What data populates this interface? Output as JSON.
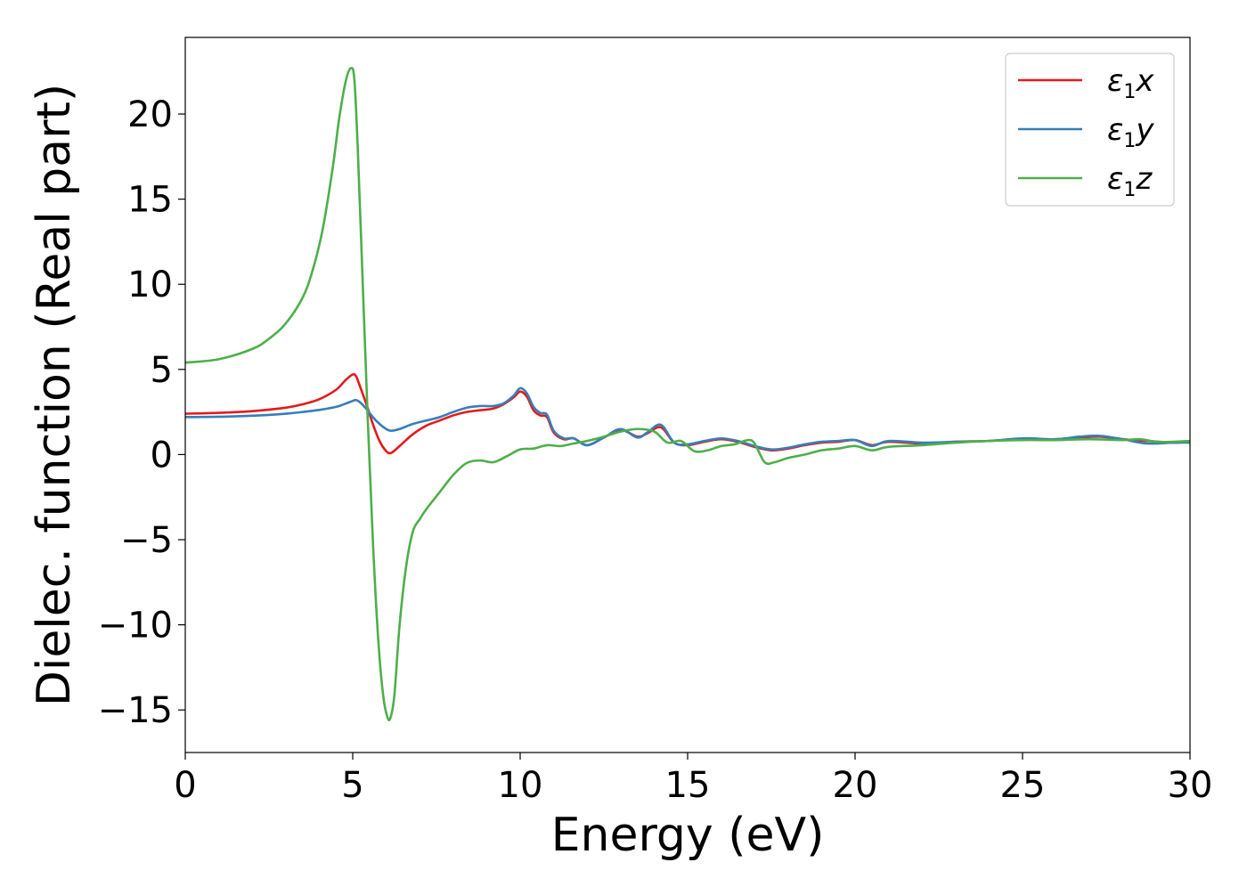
{
  "chart_data": {
    "type": "line",
    "xlabel": "Energy (eV)",
    "ylabel": "Dielec. function (Real part)",
    "xlim": [
      0,
      30
    ],
    "ylim": [
      -17.5,
      24.5
    ],
    "xticks": [
      0,
      5,
      10,
      15,
      20,
      25,
      30
    ],
    "xtick_labels": [
      "0",
      "5",
      "10",
      "15",
      "20",
      "25",
      "30"
    ],
    "yticks": [
      -15,
      -10,
      -5,
      0,
      5,
      10,
      15,
      20
    ],
    "ytick_labels": [
      "−15",
      "−10",
      "−5",
      "0",
      "5",
      "10",
      "15",
      "20"
    ],
    "grid": false,
    "legend_position": "top-right",
    "series": [
      {
        "name": "ε1x",
        "legend_main": "ε",
        "legend_sub": "1",
        "legend_suffix": "x",
        "color": "#e41a1c",
        "x": [
          0,
          1,
          2,
          3,
          3.5,
          4,
          4.5,
          4.8,
          5.0,
          5.1,
          5.2,
          5.4,
          5.6,
          5.8,
          6.0,
          6.15,
          6.4,
          6.8,
          7.2,
          7.6,
          8.0,
          8.4,
          8.8,
          9.2,
          9.5,
          9.8,
          10.0,
          10.2,
          10.4,
          10.6,
          10.8,
          11.0,
          11.3,
          11.6,
          12.0,
          12.5,
          13.0,
          13.5,
          13.8,
          14.2,
          14.6,
          15.0,
          15.5,
          16.0,
          16.5,
          17.0,
          17.5,
          18.0,
          18.5,
          19.0,
          19.5,
          20.0,
          20.5,
          21.0,
          22.0,
          23.0,
          24.0,
          25.0,
          26.0,
          26.7,
          27.3,
          28.0,
          28.7,
          29.5,
          30.0
        ],
        "y": [
          2.4,
          2.45,
          2.55,
          2.75,
          2.95,
          3.25,
          3.8,
          4.4,
          4.7,
          4.6,
          4.1,
          3.0,
          1.8,
          0.8,
          0.2,
          0.1,
          0.5,
          1.2,
          1.7,
          2.0,
          2.3,
          2.5,
          2.6,
          2.7,
          2.95,
          3.35,
          3.7,
          3.4,
          2.6,
          2.3,
          2.2,
          1.3,
          0.9,
          0.95,
          0.55,
          1.0,
          1.45,
          1.05,
          1.25,
          1.6,
          0.7,
          0.55,
          0.75,
          0.9,
          0.75,
          0.45,
          0.25,
          0.35,
          0.55,
          0.7,
          0.75,
          0.85,
          0.55,
          0.75,
          0.65,
          0.75,
          0.8,
          0.9,
          0.9,
          1.0,
          1.05,
          0.9,
          0.8,
          0.7,
          0.75
        ]
      },
      {
        "name": "ε1y",
        "legend_main": "ε",
        "legend_sub": "1",
        "legend_suffix": "y",
        "color": "#377eb8",
        "x": [
          0,
          1,
          2,
          3,
          3.5,
          4,
          4.5,
          4.8,
          5.0,
          5.1,
          5.2,
          5.4,
          5.6,
          5.8,
          6.0,
          6.15,
          6.4,
          6.8,
          7.2,
          7.6,
          8.0,
          8.4,
          8.8,
          9.2,
          9.5,
          9.8,
          10.0,
          10.2,
          10.4,
          10.6,
          10.8,
          11.0,
          11.3,
          11.6,
          12.0,
          12.5,
          13.0,
          13.5,
          13.8,
          14.2,
          14.6,
          15.0,
          15.5,
          16.0,
          16.5,
          17.0,
          17.5,
          18.0,
          18.5,
          19.0,
          19.5,
          20.0,
          20.5,
          21.0,
          22.0,
          23.0,
          24.0,
          25.0,
          26.0,
          26.7,
          27.3,
          28.0,
          28.7,
          29.5,
          30.0
        ],
        "y": [
          2.2,
          2.22,
          2.28,
          2.4,
          2.5,
          2.62,
          2.8,
          3.0,
          3.15,
          3.2,
          3.1,
          2.7,
          2.2,
          1.8,
          1.5,
          1.4,
          1.5,
          1.8,
          2.0,
          2.2,
          2.5,
          2.75,
          2.85,
          2.85,
          3.0,
          3.45,
          3.9,
          3.6,
          2.8,
          2.45,
          2.35,
          1.4,
          0.95,
          0.95,
          0.55,
          1.0,
          1.5,
          1.0,
          1.3,
          1.75,
          0.7,
          0.6,
          0.8,
          0.95,
          0.8,
          0.5,
          0.3,
          0.4,
          0.6,
          0.75,
          0.8,
          0.85,
          0.5,
          0.8,
          0.7,
          0.75,
          0.8,
          0.95,
          0.9,
          1.05,
          1.1,
          0.9,
          0.65,
          0.7,
          0.7
        ]
      },
      {
        "name": "ε1z",
        "legend_main": "ε",
        "legend_sub": "1",
        "legend_suffix": "z",
        "color": "#4daf4a",
        "x": [
          0,
          1,
          2,
          2.5,
          3,
          3.5,
          3.8,
          4.1,
          4.4,
          4.6,
          4.8,
          4.95,
          5.05,
          5.15,
          5.3,
          5.45,
          5.6,
          5.75,
          5.9,
          6.05,
          6.15,
          6.25,
          6.4,
          6.6,
          6.8,
          7.0,
          7.2,
          7.6,
          8.0,
          8.4,
          8.8,
          9.2,
          9.6,
          10.0,
          10.4,
          10.8,
          11.2,
          11.6,
          12.0,
          12.5,
          13.0,
          13.5,
          14.0,
          14.4,
          14.8,
          15.2,
          15.6,
          16.0,
          16.4,
          16.8,
          17.0,
          17.3,
          17.6,
          18.0,
          18.5,
          19.0,
          19.5,
          20.0,
          20.5,
          21.0,
          22.0,
          23.0,
          24.0,
          25.0,
          26.0,
          27.0,
          28.0,
          28.5,
          29.0,
          29.5,
          30.0
        ],
        "y": [
          5.4,
          5.6,
          6.2,
          6.8,
          7.7,
          9.2,
          10.8,
          13.2,
          16.8,
          19.8,
          22.0,
          22.7,
          22.0,
          18.0,
          10.0,
          2.0,
          -5.0,
          -10.5,
          -14.0,
          -15.5,
          -15.3,
          -14.0,
          -10.0,
          -6.5,
          -4.5,
          -3.8,
          -3.2,
          -2.2,
          -1.2,
          -0.5,
          -0.35,
          -0.45,
          -0.1,
          0.3,
          0.35,
          0.55,
          0.5,
          0.65,
          0.8,
          1.05,
          1.35,
          1.5,
          1.35,
          0.7,
          0.8,
          0.2,
          0.25,
          0.5,
          0.6,
          0.85,
          0.65,
          -0.45,
          -0.45,
          -0.2,
          0.0,
          0.25,
          0.35,
          0.5,
          0.25,
          0.45,
          0.55,
          0.7,
          0.8,
          0.85,
          0.85,
          0.9,
          0.85,
          0.9,
          0.75,
          0.75,
          0.8
        ]
      }
    ]
  }
}
